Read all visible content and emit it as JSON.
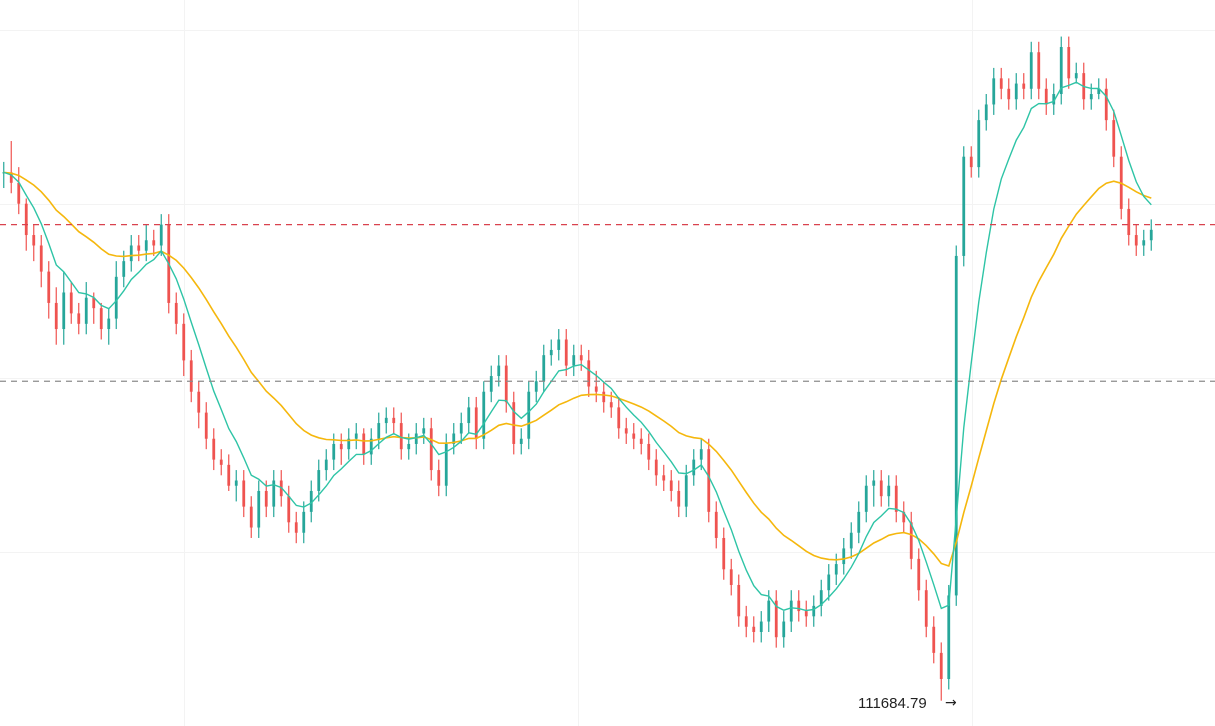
{
  "chart_data": {
    "type": "candlestick",
    "grid": true,
    "ylim": [
      111200,
      125100
    ],
    "colors": {
      "up": "#26a69a",
      "down": "#ef5350",
      "ma_short": "#2ec4a6",
      "ma_long": "#f5b70d",
      "level_upper": "#d9424e",
      "level_lower": "#8c8c8c"
    },
    "levels": {
      "upper_dashed": 120800,
      "lower_dashed": 117800
    },
    "low_marker": {
      "label": "111684.79",
      "arrow": "→",
      "value": 111684.79
    },
    "series": [
      {
        "key": "candles",
        "close": [
          121800,
          121600,
          121200,
          120600,
          120400,
          119900,
          119300,
          118800,
          119500,
          119100,
          118900,
          119400,
          119200,
          118800,
          119000,
          119800,
          120100,
          120400,
          120300,
          120500,
          120400,
          120800,
          119300,
          118900,
          118200,
          117600,
          117200,
          116700,
          116300,
          116200,
          115800,
          115900,
          115400,
          115000,
          115700,
          115400,
          115900,
          115600,
          115100,
          114900,
          115300,
          115700,
          116100,
          116300,
          116600,
          116500,
          116700,
          116800,
          116400,
          116700,
          117000,
          117100,
          117000,
          116500,
          116600,
          116800,
          116900,
          116100,
          115800,
          116600,
          116800,
          117000,
          117300,
          116700,
          117600,
          117900,
          118100,
          117400,
          116600,
          116700,
          117600,
          117800,
          118300,
          118400,
          118600,
          118100,
          118300,
          118200,
          117700,
          117600,
          117400,
          117300,
          116900,
          116800,
          116700,
          116600,
          116300,
          116000,
          115900,
          115700,
          115400,
          116000,
          116300,
          116500,
          115300,
          114800,
          114200,
          113900,
          113300,
          113100,
          113000,
          113200,
          113600,
          112900,
          113200,
          113600,
          113400,
          113300,
          113500,
          113800,
          114100,
          114300,
          114600,
          114900,
          115300,
          115800,
          115900,
          115600,
          115800,
          115300,
          115100,
          114400,
          113800,
          113100,
          112600,
          112100,
          113700,
          120200,
          122100,
          121900,
          122800,
          123100,
          123600,
          123400,
          123200,
          123500,
          123400,
          124100,
          123400,
          123100,
          123300,
          124200,
          123600,
          123700,
          123200,
          123300,
          123400,
          122800,
          122100,
          121100,
          120600,
          120400,
          120500,
          120700
        ],
        "open": [
          121800,
          121800,
          121600,
          121200,
          120600,
          120400,
          119900,
          119300,
          118800,
          119500,
          119100,
          118900,
          119400,
          119200,
          118800,
          119000,
          119800,
          120100,
          120400,
          120300,
          120500,
          120400,
          120800,
          119300,
          118900,
          118200,
          117600,
          117200,
          116700,
          116300,
          116200,
          115800,
          115900,
          115400,
          115000,
          115700,
          115400,
          115900,
          115600,
          115100,
          114900,
          115300,
          115700,
          116100,
          116300,
          116600,
          116500,
          116700,
          116800,
          116400,
          116700,
          117000,
          117100,
          117000,
          116500,
          116600,
          116800,
          116900,
          116100,
          115800,
          116600,
          116800,
          117000,
          117300,
          116700,
          117600,
          117900,
          118100,
          117400,
          116600,
          116700,
          117600,
          117800,
          118300,
          118400,
          118600,
          118100,
          118300,
          118200,
          117700,
          117600,
          117400,
          117300,
          116900,
          116800,
          116700,
          116600,
          116300,
          116000,
          115900,
          115700,
          115400,
          116000,
          116300,
          116500,
          115300,
          114800,
          114200,
          113900,
          113300,
          113100,
          113000,
          113200,
          113600,
          112900,
          113200,
          113600,
          113400,
          113300,
          113500,
          113800,
          114100,
          114300,
          114600,
          114900,
          115300,
          115800,
          115900,
          115600,
          115800,
          115300,
          115100,
          114400,
          113800,
          113100,
          112600,
          112100,
          113700,
          120200,
          122100,
          121900,
          122800,
          123100,
          123600,
          123400,
          123200,
          123500,
          123400,
          124100,
          123400,
          123100,
          123300,
          124200,
          123600,
          123700,
          123200,
          123300,
          123400,
          122800,
          122100,
          121100,
          120600,
          120400,
          120500
        ],
        "high": [
          122000,
          122400,
          121900,
          121300,
          120800,
          120600,
          120100,
          119600,
          119900,
          119700,
          119300,
          119700,
          119500,
          119300,
          119200,
          120100,
          120300,
          120600,
          120600,
          120800,
          120700,
          121000,
          121000,
          119500,
          119100,
          118400,
          117800,
          117400,
          116900,
          116500,
          116400,
          116100,
          116100,
          115600,
          115900,
          115900,
          116100,
          116100,
          115800,
          115300,
          115500,
          115900,
          116300,
          116500,
          116800,
          116800,
          116900,
          117000,
          116900,
          116900,
          117200,
          117300,
          117300,
          117200,
          116800,
          117000,
          117100,
          117100,
          116300,
          116800,
          117000,
          117200,
          117500,
          117500,
          117800,
          118100,
          118300,
          118300,
          117600,
          116900,
          117800,
          118000,
          118500,
          118600,
          118800,
          118800,
          118500,
          118500,
          118400,
          118000,
          117800,
          117600,
          117500,
          117100,
          117000,
          116900,
          116800,
          116500,
          116200,
          116100,
          115900,
          116200,
          116500,
          116700,
          116700,
          115500,
          115000,
          114400,
          114100,
          113500,
          113300,
          113400,
          113800,
          113800,
          113400,
          113800,
          113800,
          113600,
          113700,
          114000,
          114300,
          114500,
          114800,
          115100,
          115500,
          116000,
          116100,
          116100,
          116000,
          116000,
          115500,
          115300,
          114600,
          114000,
          113300,
          112800,
          113900,
          120400,
          122300,
          122300,
          123000,
          123300,
          123800,
          123800,
          123600,
          123700,
          123700,
          124300,
          124300,
          123600,
          123500,
          124400,
          124400,
          123900,
          123900,
          123500,
          123600,
          123600,
          123000,
          122300,
          121300,
          120800,
          120700,
          120900
        ],
        "low": [
          121500,
          121400,
          121000,
          120300,
          120100,
          119600,
          119000,
          118500,
          118500,
          118900,
          118700,
          118700,
          118900,
          118600,
          118500,
          118800,
          119600,
          119900,
          120100,
          120100,
          120200,
          120200,
          119100,
          118700,
          117900,
          117400,
          116900,
          116500,
          116100,
          116000,
          115700,
          115500,
          115200,
          114800,
          114800,
          115200,
          115200,
          115400,
          114900,
          114700,
          114700,
          115100,
          115500,
          115900,
          116100,
          116200,
          116300,
          116500,
          116200,
          116200,
          116500,
          116800,
          116800,
          116300,
          116300,
          116400,
          116600,
          115900,
          115600,
          115600,
          116400,
          116600,
          116800,
          116500,
          116500,
          117400,
          117700,
          117200,
          116400,
          116400,
          116500,
          117400,
          117600,
          118100,
          118200,
          117900,
          117900,
          118000,
          117500,
          117400,
          117200,
          117100,
          116700,
          116600,
          116500,
          116400,
          116100,
          115800,
          115700,
          115500,
          115200,
          115200,
          115800,
          116100,
          115100,
          114600,
          114000,
          113700,
          113100,
          112900,
          112800,
          112800,
          113000,
          112700,
          112700,
          113000,
          113200,
          113100,
          113100,
          113300,
          113600,
          113900,
          114100,
          114400,
          114700,
          115100,
          115400,
          115400,
          115400,
          115100,
          114900,
          114200,
          113600,
          112900,
          112400,
          111684.79,
          111900,
          113500,
          120000,
          121700,
          121700,
          122600,
          122900,
          123200,
          123000,
          123000,
          123200,
          123200,
          123200,
          122900,
          122900,
          123100,
          123400,
          123500,
          123000,
          123000,
          123200,
          122600,
          121900,
          120900,
          120400,
          120200,
          120200,
          120300
        ]
      },
      {
        "key": "ma_short",
        "name": "",
        "smoothing": 7
      },
      {
        "key": "ma_long",
        "name": "",
        "smoothing": 25
      }
    ]
  }
}
